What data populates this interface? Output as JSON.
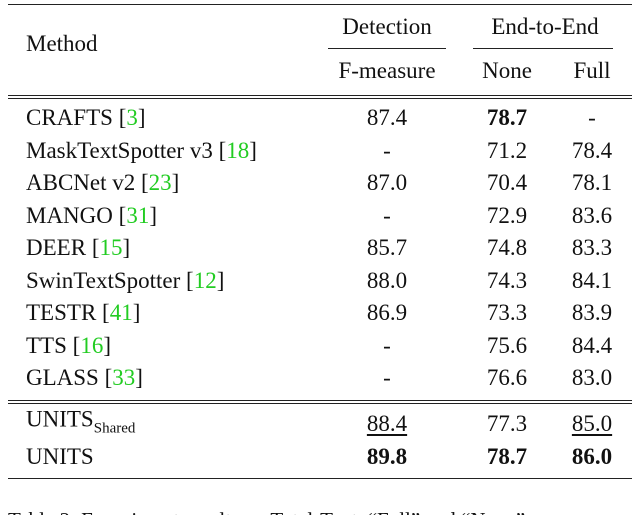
{
  "header": {
    "method": "Method",
    "detection": "Detection",
    "end_to_end": "End-to-End",
    "f_measure": "F-measure",
    "none": "None",
    "full": "Full"
  },
  "table": {
    "rows": [
      {
        "method": "CRAFTS",
        "ref": "[3]",
        "cells": [
          {
            "text": "87.4"
          },
          {
            "text": "78.7",
            "style": "bold"
          },
          {
            "text": "-"
          }
        ]
      },
      {
        "method": "MaskTextSpotter v3",
        "ref": "[18]",
        "cells": [
          {
            "text": "-"
          },
          {
            "text": "71.2"
          },
          {
            "text": "78.4"
          }
        ]
      },
      {
        "method": "ABCNet v2",
        "ref": "[23]",
        "cells": [
          {
            "text": "87.0"
          },
          {
            "text": "70.4"
          },
          {
            "text": "78.1"
          }
        ]
      },
      {
        "method": "MANGO",
        "ref": "[31]",
        "cells": [
          {
            "text": "-"
          },
          {
            "text": "72.9"
          },
          {
            "text": "83.6"
          }
        ]
      },
      {
        "method": "DEER",
        "ref": "[15]",
        "cells": [
          {
            "text": "85.7"
          },
          {
            "text": "74.8"
          },
          {
            "text": "83.3"
          }
        ]
      },
      {
        "method": "SwinTextSpotter",
        "ref": "[12]",
        "cells": [
          {
            "text": "88.0"
          },
          {
            "text": "74.3"
          },
          {
            "text": "84.1"
          }
        ]
      },
      {
        "method": "TESTR",
        "ref": "[41]",
        "cells": [
          {
            "text": "86.9"
          },
          {
            "text": "73.3"
          },
          {
            "text": "83.9"
          }
        ]
      },
      {
        "method": "TTS",
        "ref": "[16]",
        "cells": [
          {
            "text": "-"
          },
          {
            "text": "75.6"
          },
          {
            "text": "84.4"
          }
        ]
      },
      {
        "method": "GLASS",
        "ref": "[33]",
        "cells": [
          {
            "text": "-"
          },
          {
            "text": "76.6"
          },
          {
            "text": "83.0"
          }
        ]
      }
    ],
    "ours": [
      {
        "method": "UNITS",
        "sub": "Shared",
        "cells": [
          {
            "text": "88.4",
            "style": "underline"
          },
          {
            "text": "77.3"
          },
          {
            "text": "85.0",
            "style": "underline"
          }
        ]
      },
      {
        "method": "UNITS",
        "cells": [
          {
            "text": "89.8",
            "style": "bold"
          },
          {
            "text": "78.7",
            "style": "bold"
          },
          {
            "text": "86.0",
            "style": "bold"
          }
        ]
      }
    ]
  },
  "caption": "Table 2: Experiment results on Total-Text. “Full” and “None”"
}
